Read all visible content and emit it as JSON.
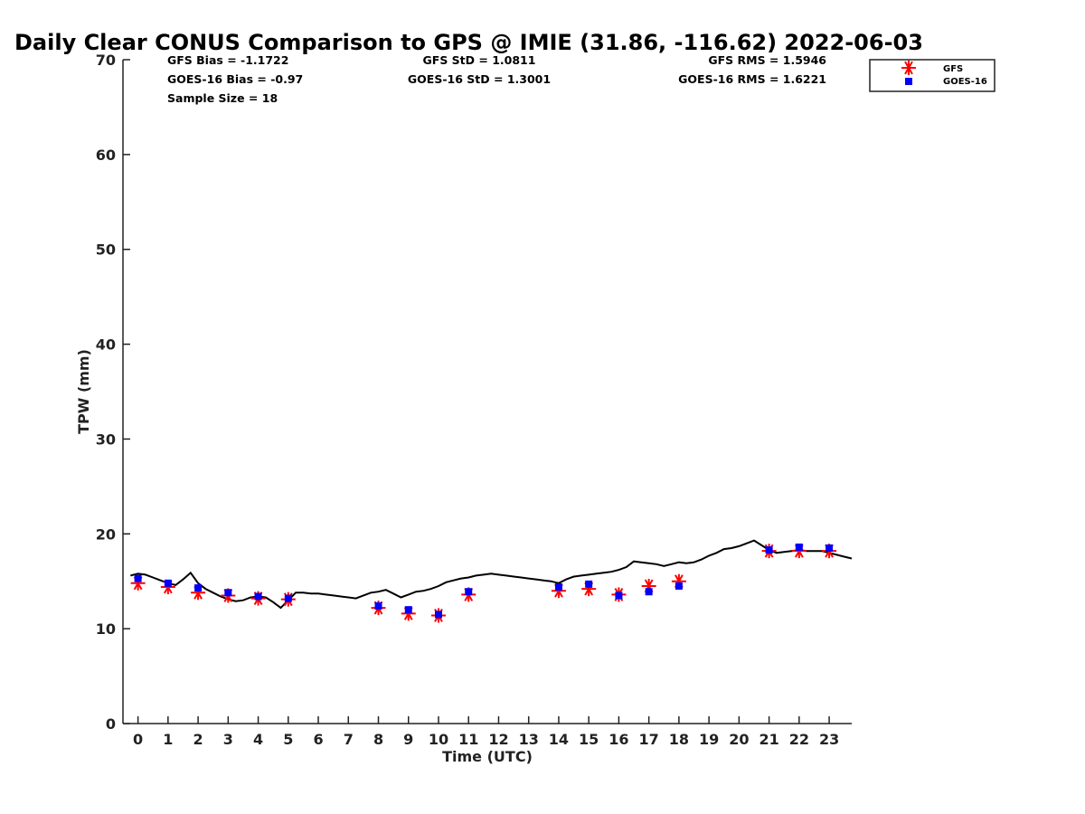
{
  "chart_data": {
    "type": "scatter",
    "title": "Daily Clear CONUS Comparison to GPS @ IMIE (31.86, -116.62) 2022-06-03",
    "xlabel": "Time (UTC)",
    "ylabel": "TPW (mm)",
    "xlim": [
      -0.5,
      23.75
    ],
    "ylim": [
      0,
      70
    ],
    "x_ticks": [
      "0",
      "1",
      "2",
      "3",
      "4",
      "5",
      "6",
      "7",
      "8",
      "9",
      "10",
      "11",
      "12",
      "13",
      "14",
      "15",
      "16",
      "17",
      "18",
      "19",
      "20",
      "21",
      "22",
      "23"
    ],
    "y_ticks": [
      "0",
      "10",
      "20",
      "30",
      "40",
      "50",
      "60",
      "70"
    ],
    "stats": {
      "gfs_bias": "GFS Bias = -1.1722",
      "goes_bias": "GOES-16 Bias = -0.97",
      "sample_size": "Sample Size = 18",
      "gfs_std": "GFS StD = 1.0811",
      "goes_std": "GOES-16 StD = 1.3001",
      "gfs_rms": "GFS RMS = 1.5946",
      "goes_rms": "GOES-16 RMS = 1.6221"
    },
    "legend": {
      "placement": "top-right",
      "entries": [
        "GFS",
        "GOES-16"
      ]
    },
    "series": [
      {
        "name": "GPS",
        "style": "line",
        "color": "#000000",
        "x": [
          -0.25,
          0,
          0.25,
          0.5,
          0.75,
          1,
          1.25,
          1.5,
          1.75,
          2,
          2.25,
          2.5,
          2.75,
          3,
          3.25,
          3.5,
          3.75,
          4,
          4.25,
          4.5,
          4.75,
          5,
          5.25,
          5.5,
          5.75,
          6,
          6.25,
          6.5,
          6.75,
          7,
          7.25,
          7.5,
          7.75,
          8,
          8.25,
          8.5,
          8.75,
          9,
          9.25,
          9.5,
          9.75,
          10,
          10.25,
          10.5,
          10.75,
          11,
          11.25,
          11.5,
          11.75,
          12,
          12.25,
          12.5,
          12.75,
          13,
          13.25,
          13.5,
          13.75,
          14,
          14.25,
          14.5,
          14.75,
          15,
          15.25,
          15.5,
          15.75,
          16,
          16.25,
          16.5,
          16.75,
          17,
          17.25,
          17.5,
          17.75,
          18,
          18.25,
          18.5,
          18.75,
          19,
          19.25,
          19.5,
          19.75,
          20,
          20.25,
          20.5,
          20.75,
          21,
          21.25,
          21.5,
          21.75,
          22,
          22.25,
          22.5,
          22.75,
          23,
          23.25,
          23.5,
          23.75
        ],
        "y": [
          15.6,
          15.8,
          15.7,
          15.4,
          15.1,
          14.8,
          14.6,
          15.2,
          15.9,
          14.8,
          14.2,
          13.8,
          13.4,
          13.1,
          12.9,
          13.0,
          13.3,
          13.4,
          13.3,
          12.8,
          12.2,
          13.0,
          13.8,
          13.8,
          13.7,
          13.7,
          13.6,
          13.5,
          13.4,
          13.3,
          13.2,
          13.5,
          13.8,
          13.9,
          14.1,
          13.7,
          13.3,
          13.6,
          13.9,
          14.0,
          14.2,
          14.5,
          14.9,
          15.1,
          15.3,
          15.4,
          15.6,
          15.7,
          15.8,
          15.7,
          15.6,
          15.5,
          15.4,
          15.3,
          15.2,
          15.1,
          15.0,
          14.8,
          15.2,
          15.5,
          15.6,
          15.7,
          15.8,
          15.9,
          16.0,
          16.2,
          16.5,
          17.1,
          17.0,
          16.9,
          16.8,
          16.6,
          16.8,
          17.0,
          16.9,
          17.0,
          17.3,
          17.7,
          18.0,
          18.4,
          18.5,
          18.7,
          19.0,
          19.3,
          18.8,
          18.3,
          18.0,
          18.1,
          18.2,
          18.3,
          18.2,
          18.2,
          18.2,
          18.0,
          17.8,
          17.6,
          17.4
        ]
      },
      {
        "name": "GFS",
        "style": "asterisk",
        "color": "#ff0000",
        "x": [
          0,
          1,
          2,
          3,
          4,
          5,
          8,
          9,
          10,
          11,
          14,
          15,
          16,
          17,
          18,
          21,
          22,
          23
        ],
        "y": [
          14.8,
          14.4,
          13.8,
          13.5,
          13.2,
          13.1,
          12.2,
          11.6,
          11.4,
          13.6,
          14.0,
          14.2,
          13.6,
          14.5,
          15.0,
          18.2,
          18.2,
          18.2
        ]
      },
      {
        "name": "GOES-16",
        "style": "square",
        "color": "#0000ff",
        "x": [
          0,
          1,
          2,
          3,
          4,
          5,
          8,
          9,
          10,
          11,
          14,
          15,
          16,
          17,
          18,
          21,
          22,
          23
        ],
        "y": [
          15.3,
          14.8,
          14.3,
          13.8,
          13.4,
          13.2,
          12.4,
          12.0,
          11.5,
          13.9,
          14.4,
          14.7,
          13.5,
          13.9,
          14.5,
          18.3,
          18.6,
          18.5
        ]
      }
    ]
  }
}
